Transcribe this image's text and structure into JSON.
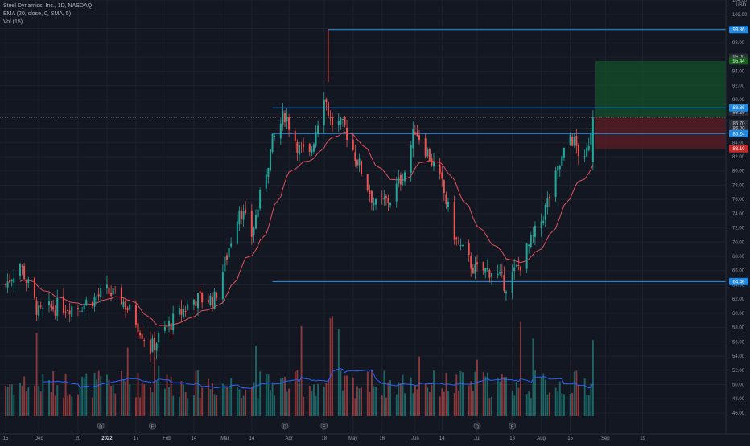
{
  "header": {
    "symbol_line": "Steel Dynamics, Inc., 1D, NASDAQ",
    "ema_line": "EMA (20, close, 0, SMA, 5)",
    "vol_line": "Vol (15)",
    "currency": "USD"
  },
  "colors": {
    "background": "#131722",
    "up": "#26a69a",
    "down": "#ef5350",
    "ema": "#e0505a",
    "volume_ma": "#2962ff",
    "level_line": "#2196f3",
    "target_zone": "#14502a",
    "stop_zone": "#5a1d24"
  },
  "chart_data": {
    "type": "candlestick",
    "x_axis_ticks": [
      {
        "label": "15",
        "date": "2021-11-15"
      },
      {
        "label": "Dec",
        "date": "2021-12-01"
      },
      {
        "label": "20",
        "date": "2021-12-20"
      },
      {
        "label": "2022",
        "date": "2022-01-03"
      },
      {
        "label": "17",
        "date": "2022-01-17"
      },
      {
        "label": "Feb",
        "date": "2022-02-01"
      },
      {
        "label": "14",
        "date": "2022-02-14"
      },
      {
        "label": "Mar",
        "date": "2022-03-01"
      },
      {
        "label": "14",
        "date": "2022-03-14"
      },
      {
        "label": "Apr",
        "date": "2022-04-01"
      },
      {
        "label": "18",
        "date": "2022-04-18"
      },
      {
        "label": "May",
        "date": "2022-05-02"
      },
      {
        "label": "16",
        "date": "2022-05-16"
      },
      {
        "label": "Jun",
        "date": "2022-06-01"
      },
      {
        "label": "14",
        "date": "2022-06-14"
      },
      {
        "label": "Jul",
        "date": "2022-07-01"
      },
      {
        "label": "18",
        "date": "2022-07-18"
      },
      {
        "label": "Aug",
        "date": "2022-08-01"
      },
      {
        "label": "15",
        "date": "2022-08-15"
      },
      {
        "label": "Sep",
        "date": "2022-09-01"
      },
      {
        "label": "19",
        "date": "2022-09-19"
      }
    ],
    "y_axis": {
      "ticks": [
        "46.00",
        "48.00",
        "50.00",
        "52.00",
        "54.00",
        "56.00",
        "58.00",
        "60.00",
        "62.00",
        "64.00",
        "66.00",
        "68.00",
        "70.00",
        "72.00",
        "74.00",
        "76.00",
        "78.00",
        "80.00",
        "82.00",
        "84.00",
        "86.00",
        "88.00",
        "90.00",
        "92.00",
        "94.00",
        "96.00",
        "98.00",
        "100.00",
        "102.00",
        "104.00"
      ],
      "range": [
        45,
        105
      ]
    },
    "anchors": [
      {
        "date": "2021-11-15",
        "close": 64
      },
      {
        "date": "2021-11-22",
        "close": 67
      },
      {
        "date": "2021-12-01",
        "close": 60
      },
      {
        "date": "2021-12-10",
        "close": 61
      },
      {
        "date": "2021-12-20",
        "close": 61
      },
      {
        "date": "2022-01-03",
        "close": 63
      },
      {
        "date": "2022-01-10",
        "close": 62
      },
      {
        "date": "2022-01-17",
        "close": 59
      },
      {
        "date": "2022-01-24",
        "close": 55
      },
      {
        "date": "2022-02-01",
        "close": 58
      },
      {
        "date": "2022-02-14",
        "close": 62
      },
      {
        "date": "2022-02-24",
        "close": 62
      },
      {
        "date": "2022-03-01",
        "close": 67
      },
      {
        "date": "2022-03-08",
        "close": 75
      },
      {
        "date": "2022-03-14",
        "close": 71
      },
      {
        "date": "2022-03-24",
        "close": 84
      },
      {
        "date": "2022-03-30",
        "close": 88
      },
      {
        "date": "2022-04-06",
        "close": 83
      },
      {
        "date": "2022-04-11",
        "close": 82
      },
      {
        "date": "2022-04-18",
        "close": 91
      },
      {
        "date": "2022-04-21",
        "close": 87
      },
      {
        "date": "2022-04-28",
        "close": 86
      },
      {
        "date": "2022-05-06",
        "close": 80
      },
      {
        "date": "2022-05-13",
        "close": 75
      },
      {
        "date": "2022-05-20",
        "close": 76
      },
      {
        "date": "2022-05-27",
        "close": 80
      },
      {
        "date": "2022-06-01",
        "close": 86
      },
      {
        "date": "2022-06-08",
        "close": 82
      },
      {
        "date": "2022-06-14",
        "close": 78
      },
      {
        "date": "2022-06-21",
        "close": 70
      },
      {
        "date": "2022-06-30",
        "close": 66
      },
      {
        "date": "2022-07-08",
        "close": 66
      },
      {
        "date": "2022-07-15",
        "close": 64
      },
      {
        "date": "2022-07-22",
        "close": 67
      },
      {
        "date": "2022-08-01",
        "close": 73
      },
      {
        "date": "2022-08-08",
        "close": 79
      },
      {
        "date": "2022-08-15",
        "close": 85
      },
      {
        "date": "2022-08-22",
        "close": 81
      },
      {
        "date": "2022-08-26",
        "close": 87.5
      }
    ],
    "marker_dates": [
      "2021-12-31",
      "2022-01-25",
      "2022-03-30",
      "2022-04-18",
      "2022-07-01",
      "2022-07-18"
    ],
    "marker_letters": [
      "D",
      "E",
      "D",
      "E",
      "D",
      "E"
    ],
    "horizontal_levels": [
      {
        "label": "99.86",
        "price": 99.86,
        "from_date": "2022-04-20"
      },
      {
        "label": "88.86",
        "price": 88.86,
        "from_date": "2022-03-24"
      },
      {
        "label": "85.24",
        "price": 85.24,
        "from_date": "2022-03-24"
      },
      {
        "label": "64.46",
        "price": 64.46,
        "from_date": "2022-03-24"
      }
    ],
    "position": {
      "start_date": "2022-08-26",
      "entry": 87.5,
      "target": 95.44,
      "stop": 83.1,
      "target_label": "95.44",
      "stop_label": "83.10"
    },
    "axis_value_labels": [
      {
        "label": "96.00",
        "price": 96.0
      },
      {
        "label": "88.29",
        "price": 88.29
      },
      {
        "label": "86.70",
        "price": 86.7
      },
      {
        "label": "86.00",
        "price": 86.0
      }
    ],
    "volume_range": [
      45.5,
      104.5
    ]
  }
}
